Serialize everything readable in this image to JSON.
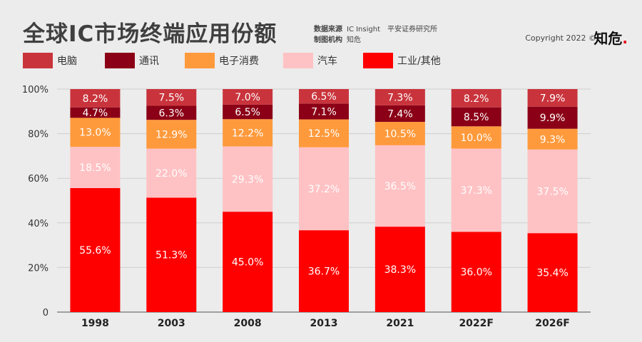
{
  "header": {
    "title": "全球IC市场终端应用份额",
    "source_key": "数据来源",
    "source_value": "IC Insight　平安证券研究所",
    "maker_key": "制图机构",
    "maker_value": "知危",
    "copyright": "Copyright 2022 ©",
    "brand_text": "知危",
    "brand_dot": "."
  },
  "colors": {
    "pc": "#c9343c",
    "comm": "#8b0016",
    "consumer": "#ff9a3c",
    "auto": "#ffc2c4",
    "industrial": "#ff0000"
  },
  "chart_data": {
    "type": "bar",
    "stacked": true,
    "title": "全球IC市场终端应用份额",
    "categories": [
      "1998",
      "2003",
      "2008",
      "2013",
      "2021",
      "2022F",
      "2026F"
    ],
    "ylim": [
      0,
      100
    ],
    "yticks": [
      "0",
      "20%",
      "40%",
      "60%",
      "80%",
      "100%"
    ],
    "series": [
      {
        "name": "工业/其他",
        "key": "industrial",
        "values": [
          55.6,
          51.3,
          45.0,
          36.7,
          38.3,
          36.0,
          35.4
        ],
        "labels": [
          "55.6%",
          "51.3%",
          "45.0%",
          "36.7%",
          "38.3%",
          "36.0%",
          "35.4%"
        ],
        "label_color": "#ffffff"
      },
      {
        "name": "汽车",
        "key": "auto",
        "values": [
          18.5,
          22.0,
          29.3,
          37.2,
          36.5,
          37.3,
          37.5
        ],
        "labels": [
          "18.5%",
          "22.0%",
          "29.3%",
          "37.2%",
          "36.5%",
          "37.3%",
          "37.5%"
        ],
        "label_color": "#ffffff"
      },
      {
        "name": "电子消费",
        "key": "consumer",
        "values": [
          13.0,
          12.9,
          12.2,
          12.5,
          10.5,
          10.0,
          9.3
        ],
        "labels": [
          "13.0%",
          "12.9%",
          "12.2%",
          "12.5%",
          "10.5%",
          "10.0%",
          "9.3%"
        ],
        "label_color": "#ffffff"
      },
      {
        "name": "通讯",
        "key": "comm",
        "values": [
          4.7,
          6.3,
          6.5,
          7.1,
          7.4,
          8.5,
          9.9
        ],
        "labels": [
          "4.7%",
          "6.3%",
          "6.5%",
          "7.1%",
          "7.4%",
          "8.5%",
          "9.9%"
        ],
        "label_color": "#ffffff"
      },
      {
        "name": "电脑",
        "key": "pc",
        "values": [
          8.2,
          7.5,
          7.0,
          6.5,
          7.3,
          8.2,
          7.9
        ],
        "labels": [
          "8.2%",
          "7.5%",
          "7.0%",
          "6.5%",
          "7.3%",
          "8.2%",
          "7.9%"
        ],
        "label_color": "#ffffff"
      }
    ],
    "legend": [
      {
        "name": "电脑",
        "key": "pc"
      },
      {
        "name": "通讯",
        "key": "comm"
      },
      {
        "name": "电子消费",
        "key": "consumer"
      },
      {
        "name": "汽车",
        "key": "auto"
      },
      {
        "name": "工业/其他",
        "key": "industrial"
      }
    ],
    "legend_position": "top-left",
    "grid": true
  }
}
